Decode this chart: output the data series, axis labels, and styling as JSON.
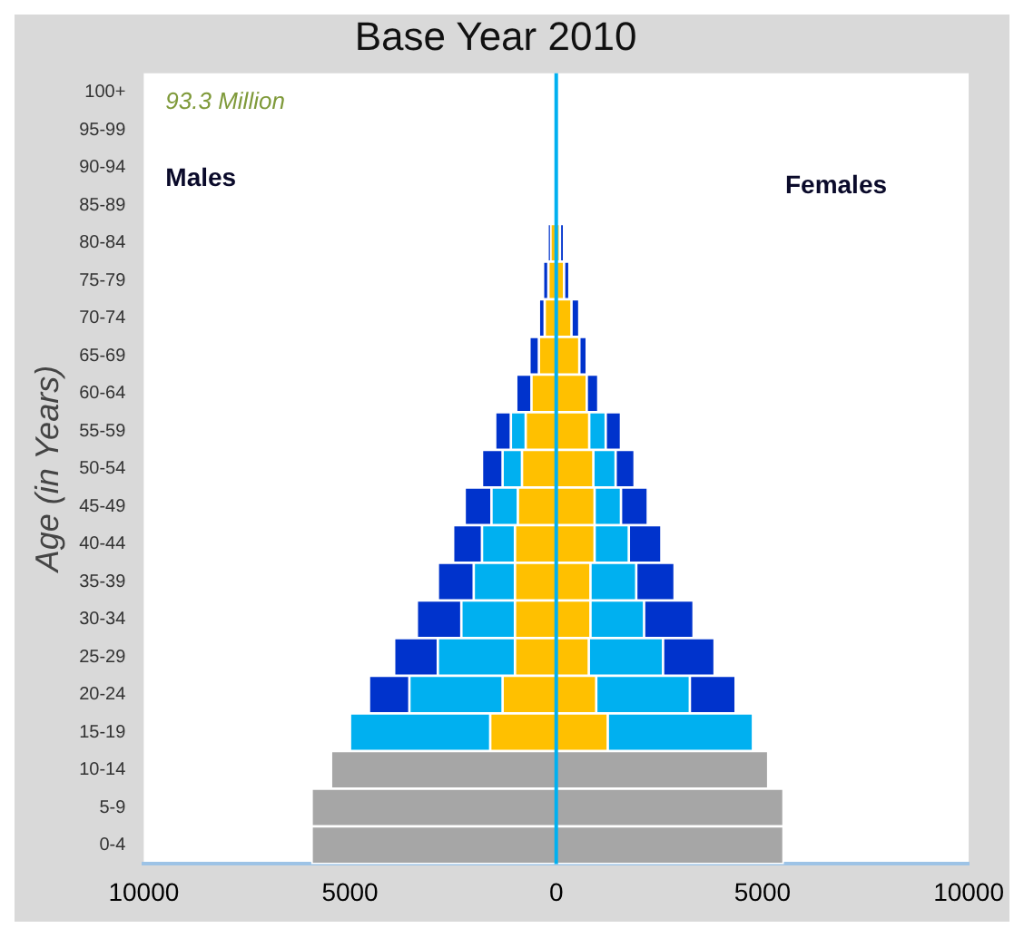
{
  "chart_data": {
    "type": "bar",
    "orientation": "horizontal",
    "stacked": true,
    "title": "Base Year 2010",
    "ylabel": "Age (in Years)",
    "categories": [
      "100+",
      "95-99",
      "90-94",
      "85-89",
      "80-84",
      "75-79",
      "70-74",
      "65-69",
      "60-64",
      "55-59",
      "50-54",
      "45-49",
      "40-44",
      "35-39",
      "30-34",
      "25-29",
      "20-24",
      "15-19",
      "10-14",
      "5-9",
      "0-4"
    ],
    "series": [
      {
        "color": "#a6a6a6",
        "values": [
          null,
          null,
          null,
          null,
          null,
          null,
          null,
          null,
          null,
          null,
          null,
          null,
          null,
          null,
          null,
          null,
          null,
          null,
          -5460,
          -5930,
          -5930
        ]
      },
      {
        "color": "#ffc000",
        "values": [
          null,
          null,
          null,
          null,
          -140,
          -190,
          -280,
          -420,
          -600,
          -740,
          -830,
          -930,
          -1000,
          -1000,
          -1000,
          -1000,
          -1300,
          -1600,
          null,
          null,
          null
        ]
      },
      {
        "color": "#00b0f0",
        "values": [
          null,
          null,
          null,
          null,
          null,
          null,
          null,
          null,
          null,
          -360,
          -470,
          -640,
          -800,
          -1000,
          -1300,
          -1870,
          -2260,
          -3400,
          null,
          null,
          null
        ]
      },
      {
        "color": "#0033cc",
        "values": [
          null,
          null,
          null,
          null,
          -50,
          -130,
          -140,
          -230,
          -370,
          -380,
          -500,
          -650,
          -700,
          -870,
          -1080,
          -1060,
          -980,
          null,
          null,
          null,
          null
        ]
      },
      {
        "color": "#a6a6a6",
        "values": [
          null,
          null,
          null,
          null,
          null,
          null,
          null,
          null,
          null,
          null,
          null,
          null,
          null,
          null,
          null,
          null,
          null,
          null,
          5140,
          5510,
          5510
        ]
      },
      {
        "color": "#ffc000",
        "values": [
          null,
          null,
          null,
          null,
          90,
          190,
          370,
          560,
          740,
          800,
          900,
          930,
          930,
          830,
          830,
          790,
          970,
          1250,
          null,
          null,
          null
        ]
      },
      {
        "color": "#00b0f0",
        "values": [
          null,
          null,
          null,
          null,
          null,
          null,
          null,
          null,
          null,
          400,
          540,
          640,
          830,
          1110,
          1300,
          1800,
          2270,
          3520,
          null,
          null,
          null
        ]
      },
      {
        "color": "#0033cc",
        "values": [
          null,
          null,
          null,
          null,
          100,
          130,
          190,
          180,
          280,
          370,
          460,
          650,
          790,
          930,
          1200,
          1250,
          1110,
          null,
          null,
          null,
          null
        ]
      }
    ],
    "xlim": [
      -10000,
      10000
    ],
    "xticks": [
      {
        "value": -10000,
        "label": "10000"
      },
      {
        "value": -5000,
        "label": "5000"
      },
      0,
      5000,
      10000
    ],
    "ref_lines": [
      {
        "axis": "x",
        "value": 0,
        "color": "#00b0f0"
      }
    ],
    "annotations": [
      "93.3 Million",
      "Males",
      "Females"
    ],
    "grid": false,
    "legend": false
  }
}
